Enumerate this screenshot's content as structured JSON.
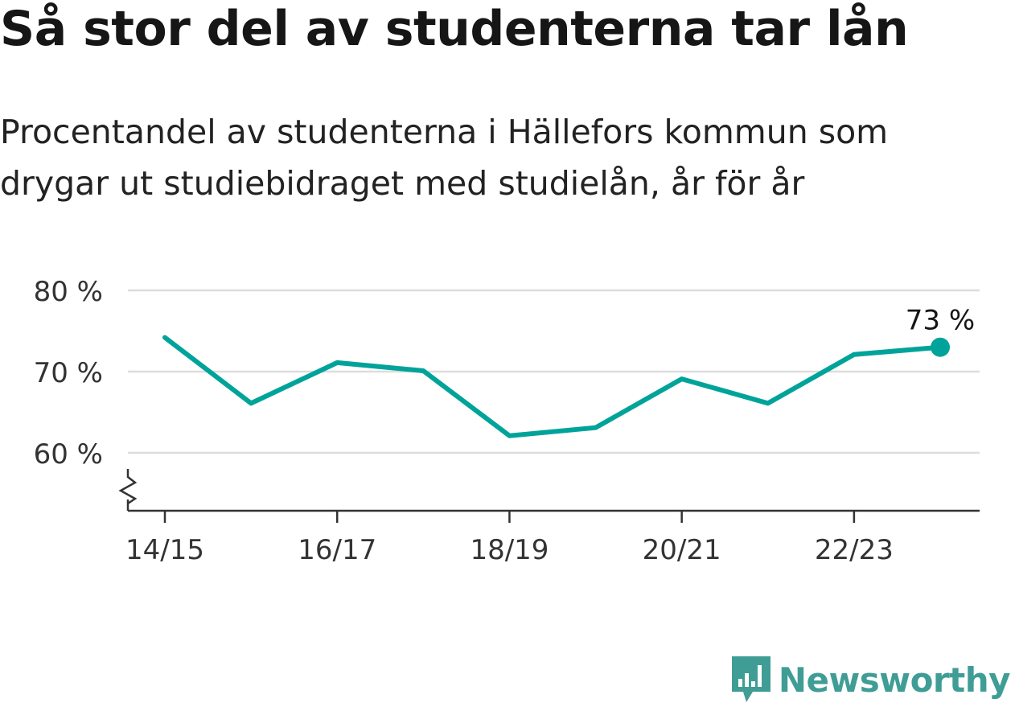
{
  "title": "Så stor del av studenterna tar lån",
  "subtitle": "Procentandel av studenterna i Hällefors kommun som drygar ut studiebidraget med studielån, år för år",
  "chart_data": {
    "type": "line",
    "x": [
      "14/15",
      "15/16",
      "16/17",
      "17/18",
      "18/19",
      "19/20",
      "20/21",
      "21/22",
      "22/23",
      "23/24"
    ],
    "x_tick_labels": [
      "14/15",
      "16/17",
      "18/19",
      "20/21",
      "22/23"
    ],
    "series": [
      {
        "values": [
          74.2,
          66.1,
          71.1,
          70.1,
          62.1,
          63.1,
          69.1,
          66.1,
          72.1,
          73.0
        ],
        "color": "#00a39a"
      }
    ],
    "y_ticks": [
      60,
      70,
      80
    ],
    "y_tick_labels": [
      "60 %",
      "70 %",
      "80 %"
    ],
    "ylim": [
      60,
      80
    ],
    "y_axis_break": true,
    "grid": true,
    "last_point_label": "73 %"
  },
  "brand": {
    "name": "Newsworthy",
    "icon": "newsworthy-logo-icon",
    "color": "#3f9d96"
  }
}
